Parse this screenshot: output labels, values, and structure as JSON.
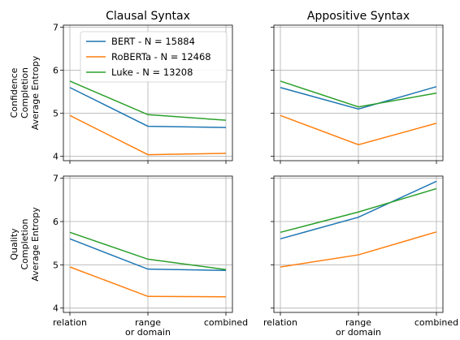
{
  "chart_data": [
    {
      "type": "line",
      "title": "Clausal Syntax",
      "ylabel": [
        "Confidence",
        "Completion",
        "Average Entropy"
      ],
      "categories": [
        "relation",
        "range\nor domain",
        "combined"
      ],
      "ylim": [
        3.9,
        7.05
      ],
      "yticks": [
        4,
        5,
        6,
        7
      ],
      "grid": true,
      "legend": "top-left",
      "series": [
        {
          "name": "BERT - N = 15884",
          "color": "#1f77b4",
          "values": [
            5.6,
            4.7,
            4.67
          ]
        },
        {
          "name": "RoBERTa - N = 12468",
          "color": "#ff7f0e",
          "values": [
            4.95,
            4.04,
            4.07
          ]
        },
        {
          "name": "Luke - N = 13208",
          "color": "#2ca02c",
          "values": [
            5.75,
            4.97,
            4.84
          ]
        }
      ]
    },
    {
      "type": "line",
      "title": "Appositive Syntax",
      "categories": [
        "relation",
        "range\nor domain",
        "combined"
      ],
      "ylim": [
        3.9,
        7.05
      ],
      "yticks": [
        4,
        5,
        6,
        7
      ],
      "grid": true,
      "series": [
        {
          "color": "#1f77b4",
          "values": [
            5.6,
            5.1,
            5.62
          ]
        },
        {
          "color": "#ff7f0e",
          "values": [
            4.95,
            4.27,
            4.77
          ]
        },
        {
          "color": "#2ca02c",
          "values": [
            5.75,
            5.15,
            5.47
          ]
        }
      ]
    },
    {
      "type": "line",
      "ylabel": [
        "Quality",
        "Completion",
        "Average Entropy"
      ],
      "categories": [
        "relation",
        "range\nor domain",
        "combined"
      ],
      "ylim": [
        3.9,
        7.05
      ],
      "yticks": [
        4,
        5,
        6,
        7
      ],
      "grid": true,
      "series": [
        {
          "color": "#1f77b4",
          "values": [
            5.6,
            4.9,
            4.87
          ]
        },
        {
          "color": "#ff7f0e",
          "values": [
            4.95,
            4.27,
            4.26
          ]
        },
        {
          "color": "#2ca02c",
          "values": [
            5.75,
            5.13,
            4.89
          ]
        }
      ]
    },
    {
      "type": "line",
      "categories": [
        "relation",
        "range\nor domain",
        "combined"
      ],
      "ylim": [
        3.9,
        7.05
      ],
      "yticks": [
        4,
        5,
        6,
        7
      ],
      "grid": true,
      "series": [
        {
          "color": "#1f77b4",
          "values": [
            5.6,
            6.1,
            6.93
          ]
        },
        {
          "color": "#ff7f0e",
          "values": [
            4.95,
            5.23,
            5.76
          ]
        },
        {
          "color": "#2ca02c",
          "values": [
            5.75,
            6.22,
            6.76
          ]
        }
      ]
    }
  ]
}
